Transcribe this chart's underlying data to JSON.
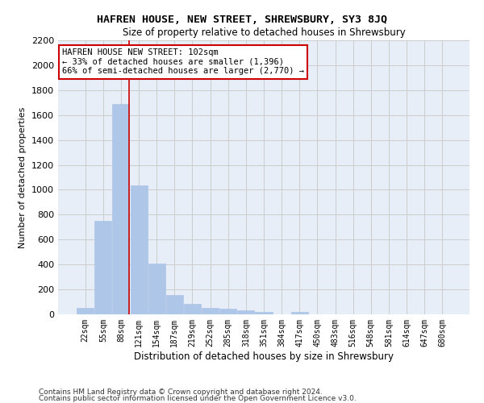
{
  "title": "HAFREN HOUSE, NEW STREET, SHREWSBURY, SY3 8JQ",
  "subtitle": "Size of property relative to detached houses in Shrewsbury",
  "xlabel": "Distribution of detached houses by size in Shrewsbury",
  "ylabel": "Number of detached properties",
  "footer1": "Contains HM Land Registry data © Crown copyright and database right 2024.",
  "footer2": "Contains public sector information licensed under the Open Government Licence v3.0.",
  "bar_labels": [
    "22sqm",
    "55sqm",
    "88sqm",
    "121sqm",
    "154sqm",
    "187sqm",
    "219sqm",
    "252sqm",
    "285sqm",
    "318sqm",
    "351sqm",
    "384sqm",
    "417sqm",
    "450sqm",
    "483sqm",
    "516sqm",
    "548sqm",
    "581sqm",
    "614sqm",
    "647sqm",
    "680sqm"
  ],
  "bar_values": [
    55,
    750,
    1690,
    1035,
    410,
    155,
    85,
    50,
    45,
    30,
    20,
    0,
    20,
    0,
    0,
    0,
    0,
    0,
    0,
    0,
    0
  ],
  "bar_color": "#aec6e8",
  "bar_edge_color": "#aec6e8",
  "grid_color": "#cccccc",
  "bg_color": "#e8eef8",
  "annotation_text": "HAFREN HOUSE NEW STREET: 102sqm\n← 33% of detached houses are smaller (1,396)\n66% of semi-detached houses are larger (2,770) →",
  "annotation_box_color": "#ffffff",
  "annotation_box_edge": "#cc0000",
  "red_line_x": 2.45,
  "ylim": [
    0,
    2200
  ],
  "yticks": [
    0,
    200,
    400,
    600,
    800,
    1000,
    1200,
    1400,
    1600,
    1800,
    2000,
    2200
  ]
}
